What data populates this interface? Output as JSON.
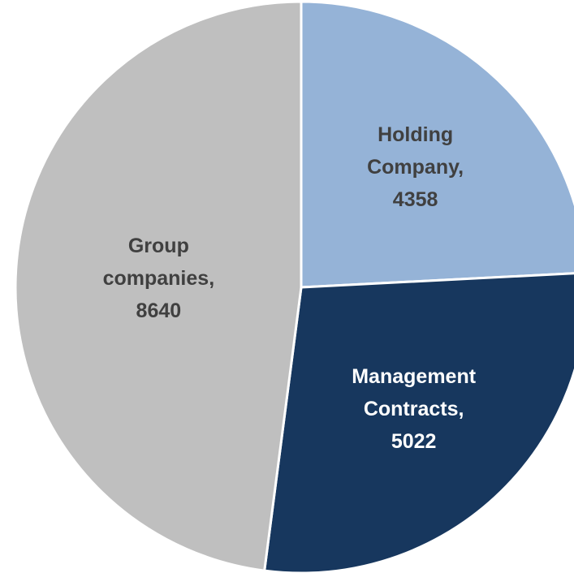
{
  "chart_data": {
    "type": "pie",
    "categories": [
      "Holding Company",
      "Management Contracts",
      "Group companies"
    ],
    "values": [
      4358,
      5022,
      8640
    ],
    "colors": [
      "#95b3d7",
      "#17375e",
      "#bfbfbf"
    ],
    "label_colors": [
      "#404040",
      "#ffffff",
      "#404040"
    ]
  }
}
